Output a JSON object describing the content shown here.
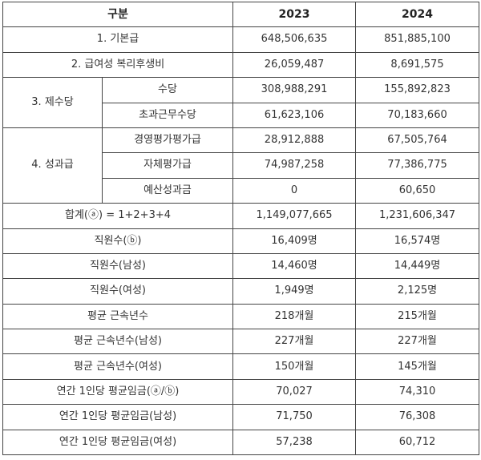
{
  "table": {
    "headers": {
      "category": "구분",
      "year1": "2023",
      "year2": "2024"
    },
    "rows": {
      "base_salary": {
        "label": "1. 기본급",
        "y2023": "648,506,635",
        "y2024": "851,885,100"
      },
      "welfare": {
        "label": "2. 급여성 복리후생비",
        "y2023": "26,059,487",
        "y2024": "8,691,575"
      },
      "allowances": {
        "label": "3. 제수당",
        "items": [
          {
            "label": "수당",
            "y2023": "308,988,291",
            "y2024": "155,892,823"
          },
          {
            "label": "초과근무수당",
            "y2023": "61,623,106",
            "y2024": "70,183,660"
          }
        ]
      },
      "performance_pay": {
        "label": "4. 성과급",
        "items": [
          {
            "label": "경영평가평가급",
            "y2023": "28,912,888",
            "y2024": "67,505,764"
          },
          {
            "label": "자체평가급",
            "y2023": "74,987,258",
            "y2024": "77,386,775"
          },
          {
            "label": "예산성과금",
            "y2023": "0",
            "y2024": "60,650"
          }
        ]
      },
      "total": {
        "label": "합계(ⓐ) = 1+2+3+4",
        "y2023": "1,149,077,665",
        "y2024": "1,231,606,347"
      },
      "employees": {
        "label": "직원수(ⓑ)",
        "y2023": "16,409명",
        "y2024": "16,574명"
      },
      "employees_male": {
        "label": "직원수(남성)",
        "y2023": "14,460명",
        "y2024": "14,449명"
      },
      "employees_female": {
        "label": "직원수(여성)",
        "y2023": "1,949명",
        "y2024": "2,125명"
      },
      "tenure": {
        "label": "평균 근속년수",
        "y2023": "218개월",
        "y2024": "215개월"
      },
      "tenure_male": {
        "label": "평균 근속년수(남성)",
        "y2023": "227개월",
        "y2024": "227개월"
      },
      "tenure_female": {
        "label": "평균 근속년수(여성)",
        "y2023": "150개월",
        "y2024": "145개월"
      },
      "avg_wage": {
        "label": "연간 1인당 평균임금(ⓐ/ⓑ)",
        "y2023": "70,027",
        "y2024": "74,310"
      },
      "avg_wage_male": {
        "label": "연간 1인당 평균임금(남성)",
        "y2023": "71,750",
        "y2024": "76,308"
      },
      "avg_wage_female": {
        "label": "연간 1인당 평균임금(여성)",
        "y2023": "57,238",
        "y2024": "60,712"
      }
    }
  }
}
